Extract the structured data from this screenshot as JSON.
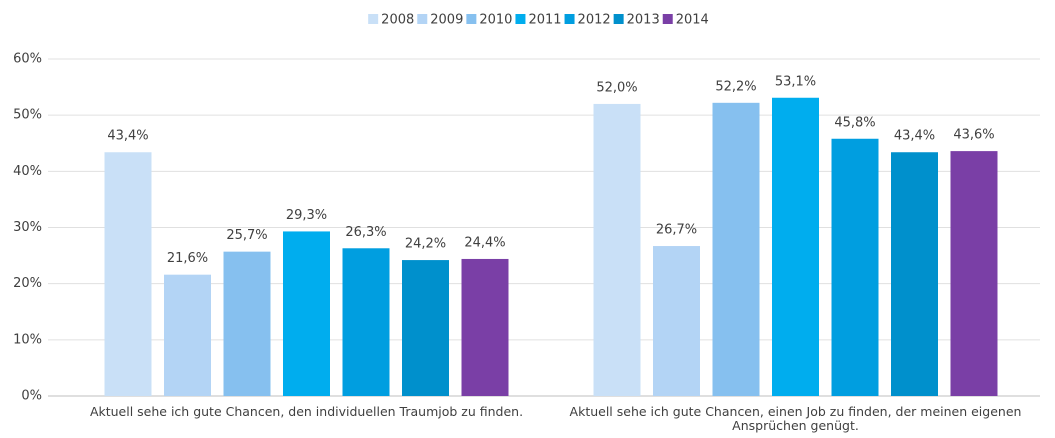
{
  "chart_data": {
    "type": "bar",
    "categories": [
      "Aktuell sehe ich gute Chancen, den individuellen Traumjob zu finden.",
      "Aktuell sehe ich gute Chancen, einen Job zu finden, der meinen eigenen Ansprüchen genügt."
    ],
    "series": [
      {
        "name": "2008",
        "color": "#c9e0f7",
        "values": [
          43.4,
          52.0
        ],
        "value_labels": [
          "43,4%",
          "52,0%"
        ]
      },
      {
        "name": "2009",
        "color": "#b3d4f5",
        "values": [
          21.6,
          26.7
        ],
        "value_labels": [
          "21,6%",
          "26,7%"
        ]
      },
      {
        "name": "2010",
        "color": "#86c0ef",
        "values": [
          25.7,
          52.2
        ],
        "value_labels": [
          "25,7%",
          "52,2%"
        ]
      },
      {
        "name": "2011",
        "color": "#00adee",
        "values": [
          29.3,
          53.1
        ],
        "value_labels": [
          "29,3%",
          "53,1%"
        ]
      },
      {
        "name": "2012",
        "color": "#009ee0",
        "values": [
          26.3,
          45.8
        ],
        "value_labels": [
          "26,3%",
          "45,8%"
        ]
      },
      {
        "name": "2013",
        "color": "#0090cc",
        "values": [
          24.2,
          43.4
        ],
        "value_labels": [
          "24,2%",
          "43,4%"
        ]
      },
      {
        "name": "2014",
        "color": "#7a3fa6",
        "values": [
          24.4,
          43.6
        ],
        "value_labels": [
          "24,4%",
          "43,6%"
        ]
      }
    ],
    "ylim": [
      0,
      60
    ],
    "yticks": [
      {
        "value": 0,
        "label": "0%"
      },
      {
        "value": 10,
        "label": "10%"
      },
      {
        "value": 20,
        "label": "20%"
      },
      {
        "value": 30,
        "label": "30%"
      },
      {
        "value": 40,
        "label": "40%"
      },
      {
        "value": 50,
        "label": "50%"
      },
      {
        "value": 60,
        "label": "60%"
      }
    ],
    "grid": true,
    "legend": "top"
  }
}
